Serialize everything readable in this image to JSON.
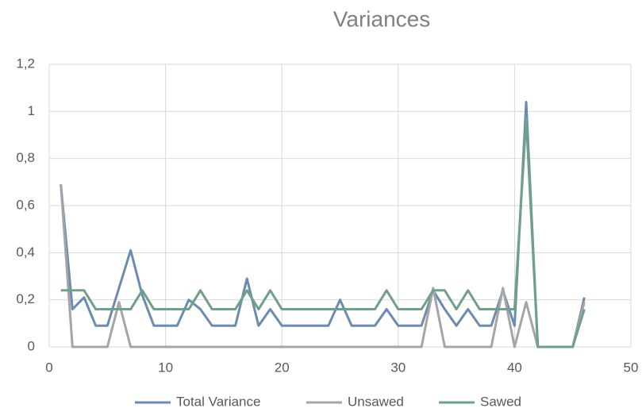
{
  "chart_data": {
    "type": "line",
    "title": "Variances",
    "x": [
      1,
      2,
      3,
      4,
      5,
      6,
      7,
      8,
      9,
      10,
      11,
      12,
      13,
      14,
      15,
      16,
      17,
      18,
      19,
      20,
      21,
      22,
      23,
      24,
      25,
      26,
      27,
      28,
      29,
      30,
      31,
      32,
      33,
      34,
      35,
      36,
      37,
      38,
      39,
      40,
      41,
      42,
      43,
      44,
      45,
      46
    ],
    "series": [
      {
        "name": "Total Variance",
        "color": "#6b8bb0",
        "values": [
          0.69,
          0.16,
          0.21,
          0.09,
          0.09,
          0.25,
          0.41,
          0.22,
          0.09,
          0.09,
          0.09,
          0.2,
          0.16,
          0.09,
          0.09,
          0.09,
          0.29,
          0.09,
          0.16,
          0.09,
          0.09,
          0.09,
          0.09,
          0.09,
          0.2,
          0.09,
          0.09,
          0.09,
          0.16,
          0.09,
          0.09,
          0.09,
          0.24,
          0.16,
          0.09,
          0.16,
          0.09,
          0.09,
          0.24,
          0.09,
          1.04,
          0,
          0,
          0,
          0,
          0.21
        ]
      },
      {
        "name": "Unsawed",
        "color": "#a5a5a5",
        "values": [
          0.69,
          0,
          0,
          0,
          0,
          0.19,
          0,
          0,
          0,
          0,
          0,
          0,
          0,
          0,
          0,
          0,
          0,
          0,
          0,
          0,
          0,
          0,
          0,
          0,
          0,
          0,
          0,
          0,
          0,
          0,
          0,
          0,
          0.25,
          0,
          0,
          0,
          0,
          0,
          0.25,
          0,
          0.19,
          0,
          0,
          0,
          0,
          0.19
        ]
      },
      {
        "name": "Sawed",
        "color": "#70a08a",
        "values": [
          0.24,
          0.24,
          0.24,
          0.16,
          0.16,
          0.16,
          0.16,
          0.24,
          0.16,
          0.16,
          0.16,
          0.16,
          0.24,
          0.16,
          0.16,
          0.16,
          0.24,
          0.16,
          0.24,
          0.16,
          0.16,
          0.16,
          0.16,
          0.16,
          0.16,
          0.16,
          0.16,
          0.16,
          0.24,
          0.16,
          0.16,
          0.16,
          0.24,
          0.24,
          0.16,
          0.24,
          0.16,
          0.16,
          0.16,
          0.16,
          0.97,
          0,
          0,
          0,
          0,
          0.16
        ]
      }
    ],
    "xlim": [
      0,
      50
    ],
    "xticks": [
      0,
      10,
      20,
      30,
      40,
      50
    ],
    "ylim": [
      0,
      1.2
    ],
    "yticks": [
      0,
      {
        "value": 0.2,
        "label": "0,2"
      },
      {
        "value": 0.4,
        "label": "0,4"
      },
      {
        "value": 0.6,
        "label": "0,6"
      },
      {
        "value": 0.8,
        "label": "0,8"
      },
      1,
      {
        "value": 1.2,
        "label": "1,2"
      }
    ],
    "grid": true,
    "legend": "bottom"
  }
}
